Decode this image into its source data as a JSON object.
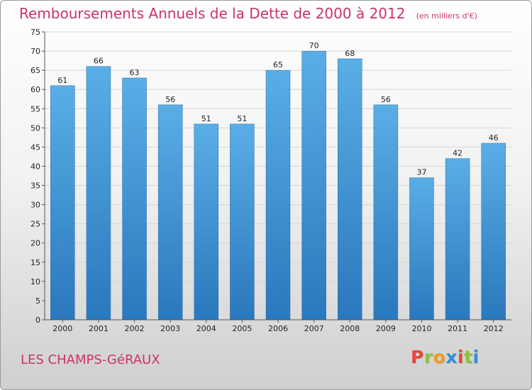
{
  "header": {
    "title": "Remboursements Annuels de la Dette de 2000 à 2012",
    "unit": "(en milliers d'€)"
  },
  "footer": {
    "place": "LES CHAMPS-GéRAUX",
    "logo": [
      "P",
      "r",
      "o",
      "x",
      "i",
      "t",
      "i"
    ]
  },
  "colors": {
    "accent": "#cc3366",
    "bar_top": "#5aaee6",
    "bar_bottom": "#2a78bd",
    "logo": [
      "#e8463a",
      "#8bc23f",
      "#f39a1e",
      "#2f8fd6",
      "#e8463a",
      "#8bc23f",
      "#2f8fd6"
    ]
  },
  "chart_data": {
    "type": "bar",
    "title": "Remboursements Annuels de la Dette de 2000 à 2012",
    "categories": [
      "2000",
      "2001",
      "2002",
      "2003",
      "2004",
      "2005",
      "2006",
      "2007",
      "2008",
      "2009",
      "2010",
      "2011",
      "2012"
    ],
    "values": [
      61,
      66,
      63,
      56,
      51,
      51,
      65,
      70,
      68,
      56,
      37,
      42,
      46
    ],
    "ylim": [
      0,
      75
    ],
    "yticks": [
      0,
      5,
      10,
      15,
      20,
      25,
      30,
      35,
      40,
      45,
      50,
      55,
      60,
      65,
      70,
      75
    ],
    "grid": true,
    "xlabel": "",
    "ylabel": ""
  }
}
